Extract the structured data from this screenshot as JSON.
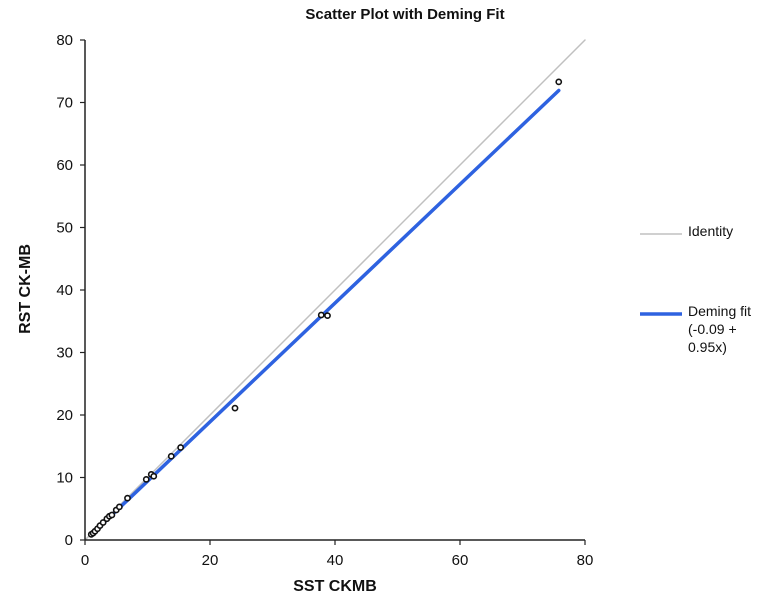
{
  "chart_data": {
    "type": "scatter",
    "title": "Scatter Plot with Deming Fit",
    "xlabel": "SST CKMB",
    "ylabel": "RST CK-MB",
    "xlim": [
      0,
      80
    ],
    "ylim": [
      0,
      80
    ],
    "xticks": [
      "0",
      "20",
      "40",
      "60",
      "80"
    ],
    "yticks": [
      "0",
      "10",
      "20",
      "30",
      "40",
      "50",
      "60",
      "70",
      "80"
    ],
    "grid": false,
    "legend_position": "right",
    "points": [
      {
        "x": 1.0,
        "y": 0.9
      },
      {
        "x": 1.3,
        "y": 1.1
      },
      {
        "x": 1.6,
        "y": 1.4
      },
      {
        "x": 2.0,
        "y": 1.8
      },
      {
        "x": 2.4,
        "y": 2.3
      },
      {
        "x": 2.9,
        "y": 2.8
      },
      {
        "x": 3.5,
        "y": 3.4
      },
      {
        "x": 3.9,
        "y": 3.8
      },
      {
        "x": 4.3,
        "y": 4.0
      },
      {
        "x": 5.0,
        "y": 4.8
      },
      {
        "x": 5.5,
        "y": 5.3
      },
      {
        "x": 6.8,
        "y": 6.7
      },
      {
        "x": 9.8,
        "y": 9.7
      },
      {
        "x": 10.6,
        "y": 10.5
      },
      {
        "x": 11.0,
        "y": 10.2
      },
      {
        "x": 13.8,
        "y": 13.4
      },
      {
        "x": 15.3,
        "y": 14.8
      },
      {
        "x": 24.0,
        "y": 21.1
      },
      {
        "x": 37.8,
        "y": 36.0
      },
      {
        "x": 38.8,
        "y": 35.9
      },
      {
        "x": 75.8,
        "y": 73.3
      }
    ],
    "series": [
      {
        "name": "Identity",
        "type": "line",
        "color": "#c0c0c0",
        "x": [
          0,
          80
        ],
        "y": [
          0,
          80
        ]
      },
      {
        "name": "Deming fit (-0.09 + 0.95x)",
        "type": "line",
        "color": "#2e62e0",
        "x": [
          1,
          75.8
        ],
        "y": [
          0.86,
          71.92
        ]
      }
    ],
    "legend": [
      {
        "label": "Identity",
        "color": "#c0c0c0"
      },
      {
        "label": "Deming fit (-0.09 + 0.95x)",
        "color": "#2e62e0"
      }
    ]
  }
}
